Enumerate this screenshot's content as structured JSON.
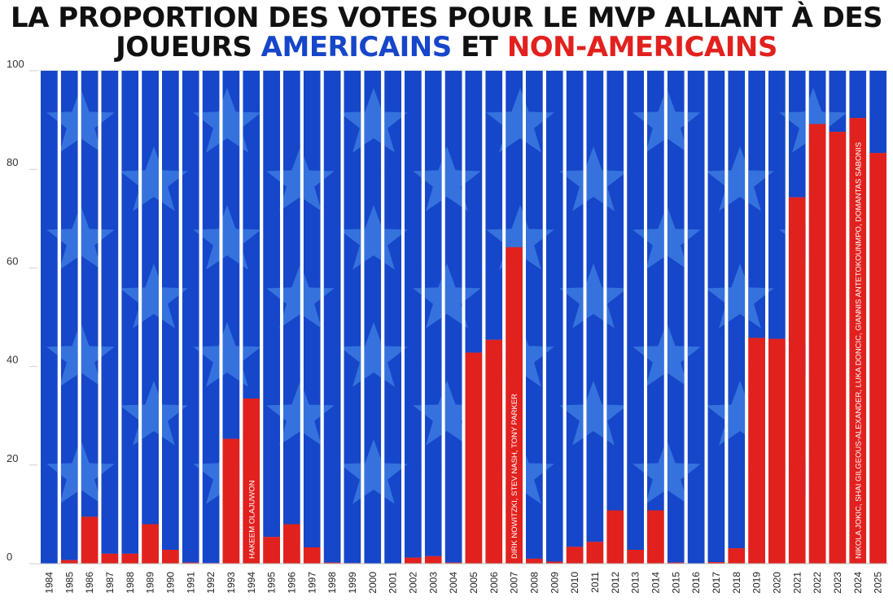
{
  "title": {
    "line1": "LA PROPORTION DES VOTES POUR LE MVP ALLANT À DES",
    "line2_prefix": "JOUEURS ",
    "line2_americans": "AMERICAINS",
    "line2_middle": " ET ",
    "line2_non_americans": "NON-AMERICAINS"
  },
  "colors": {
    "american": "#1646c9",
    "non_american": "#e1211e",
    "star": "#3b7ae0"
  },
  "chart_data": {
    "type": "bar",
    "stacked": true,
    "categories": [
      "1984",
      "1985",
      "1986",
      "1987",
      "1988",
      "1989",
      "1990",
      "1991",
      "1992",
      "1993",
      "1994",
      "1995",
      "1996",
      "1997",
      "1998",
      "1999",
      "2000",
      "2001",
      "2002",
      "2003",
      "2004",
      "2005",
      "2006",
      "2007",
      "2008",
      "2009",
      "2010",
      "2011",
      "2012",
      "2013",
      "2014",
      "2015",
      "2016",
      "2017",
      "2018",
      "2019",
      "2020",
      "2021",
      "2022",
      "2023",
      "2024",
      "2025"
    ],
    "series": [
      {
        "name": "AMERICAINS",
        "values": [
          100,
          99.3,
          90.5,
          98,
          98,
          92,
          97.2,
          99.8,
          99.9,
          74.7,
          66.5,
          94.6,
          92,
          96.7,
          99.8,
          99.9,
          100,
          100,
          98.8,
          98.5,
          99.8,
          57.2,
          54.6,
          35.8,
          99,
          99.6,
          96.6,
          95.6,
          89.2,
          97.2,
          89.2,
          99.8,
          100,
          99.7,
          96.9,
          54.2,
          54.4,
          25.7,
          10.8,
          12.4,
          9.6,
          16.7
        ]
      },
      {
        "name": "NON-AMERICAINS",
        "values": [
          0,
          0.7,
          9.5,
          2,
          2,
          8,
          2.8,
          0.2,
          0.1,
          25.3,
          33.5,
          5.4,
          8,
          3.3,
          0.2,
          0.1,
          0,
          0,
          1.2,
          1.5,
          0.2,
          42.8,
          45.4,
          64.2,
          1,
          0.4,
          3.4,
          4.4,
          10.8,
          2.8,
          10.8,
          0.2,
          0,
          0.3,
          3.1,
          45.8,
          45.6,
          74.3,
          89.2,
          87.6,
          90.4,
          83.3
        ]
      }
    ],
    "ylim": [
      0,
      100
    ],
    "yticks": [
      0,
      20,
      40,
      60,
      80,
      100
    ],
    "ytick_labels": [
      "0",
      "20",
      "40",
      "60",
      "80",
      "100"
    ],
    "grid": true,
    "annotations": [
      {
        "category": "1994",
        "text": "HAKEEM OLAJUWON"
      },
      {
        "category": "2007",
        "text": "DIRK NOWITZKI, STEV NASH, TONY PARKER"
      },
      {
        "category": "2024",
        "text": "NIKOLA JOKIC, SHAI GILGEOUS-ALEXANDER, LUKA DONCIC, GIANNIS ANTETOKOUNMPO, DOMANTAS SABONIS"
      }
    ]
  }
}
